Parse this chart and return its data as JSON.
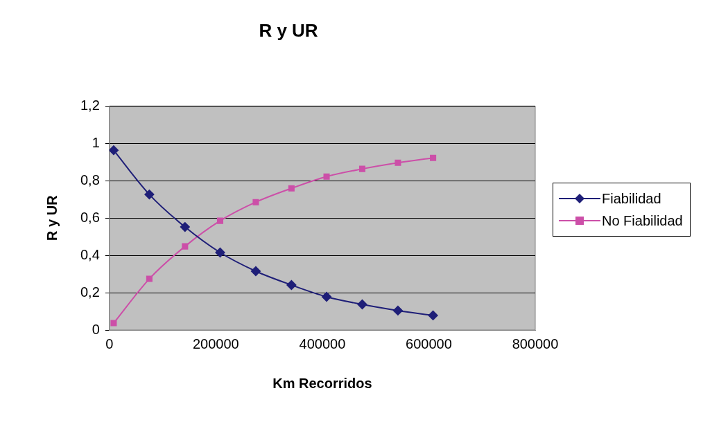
{
  "chart_data": {
    "type": "line",
    "title": "R y UR",
    "xlabel": "Km Recorridos",
    "ylabel": "R y UR",
    "x": [
      8000,
      75000,
      142000,
      208000,
      275000,
      342000,
      408000,
      475000,
      542000,
      608000
    ],
    "series": [
      {
        "name": "Fiabilidad",
        "color": "#1f1f78",
        "marker": "diamond",
        "values": [
          0.963,
          0.726,
          0.552,
          0.415,
          0.315,
          0.241,
          0.178,
          0.137,
          0.104,
          0.078
        ]
      },
      {
        "name": "No Fiabilidad",
        "color": "#cc4fa8",
        "marker": "square",
        "values": [
          0.037,
          0.274,
          0.448,
          0.585,
          0.685,
          0.759,
          0.822,
          0.863,
          0.896,
          0.922
        ]
      }
    ],
    "xlim": [
      0,
      800000
    ],
    "xticks": [
      0,
      200000,
      400000,
      600000,
      800000
    ],
    "ylim": [
      0,
      1.2
    ],
    "yticks": [
      0,
      {
        "value": 0.2,
        "label": "0,2"
      },
      {
        "value": 0.4,
        "label": "0,4"
      },
      {
        "value": 0.6,
        "label": "0,6"
      },
      {
        "value": 0.8,
        "label": "0,8"
      },
      1,
      {
        "value": 1.2,
        "label": "1,2"
      }
    ],
    "grid": "y",
    "legend": "right",
    "line_style": "solid"
  }
}
